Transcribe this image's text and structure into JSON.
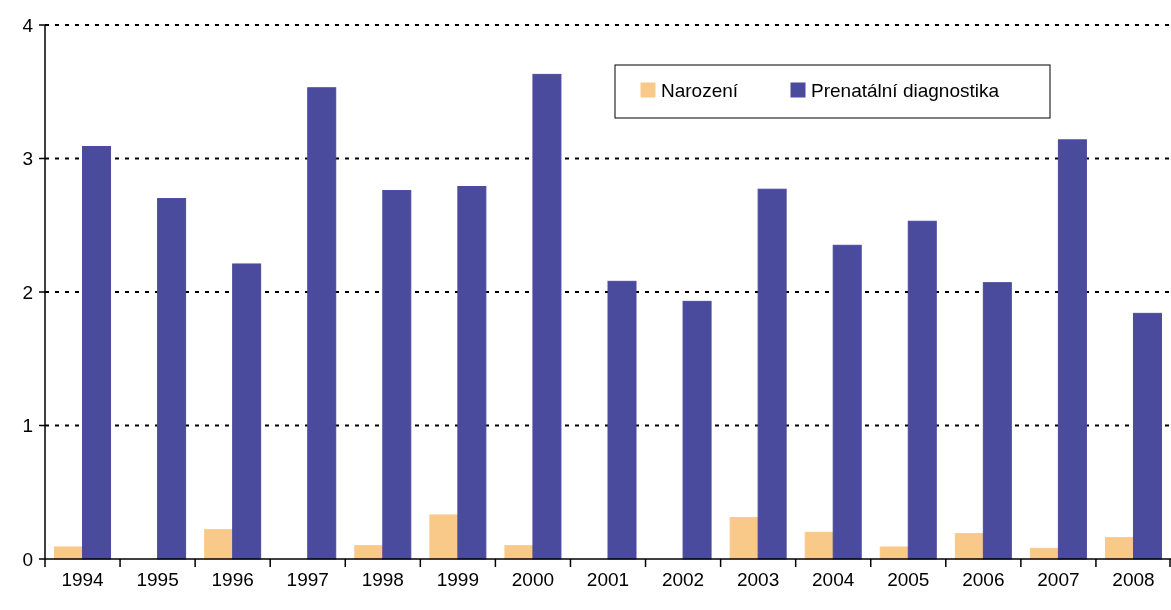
{
  "chart_data": {
    "type": "bar",
    "categories": [
      "1994",
      "1995",
      "1996",
      "1997",
      "1998",
      "1999",
      "2000",
      "2001",
      "2002",
      "2003",
      "2004",
      "2005",
      "2006",
      "2007",
      "2008"
    ],
    "series": [
      {
        "name": "Narození",
        "color": "#f9c98a",
        "values": [
          0.09,
          0,
          0.22,
          0,
          0.1,
          0.33,
          0.1,
          0,
          0,
          0.31,
          0.2,
          0.09,
          0.19,
          0.08,
          0.16
        ]
      },
      {
        "name": "Prenatální diagnostika",
        "color": "#4b4b9e",
        "values": [
          3.09,
          2.7,
          2.21,
          3.53,
          2.76,
          2.79,
          3.63,
          2.08,
          1.93,
          2.77,
          2.35,
          2.53,
          2.07,
          3.14,
          1.84
        ]
      }
    ],
    "ylim": [
      0,
      4
    ],
    "yticks": [
      0,
      1,
      2,
      3,
      4
    ],
    "grid": "y",
    "legend": "top right"
  }
}
